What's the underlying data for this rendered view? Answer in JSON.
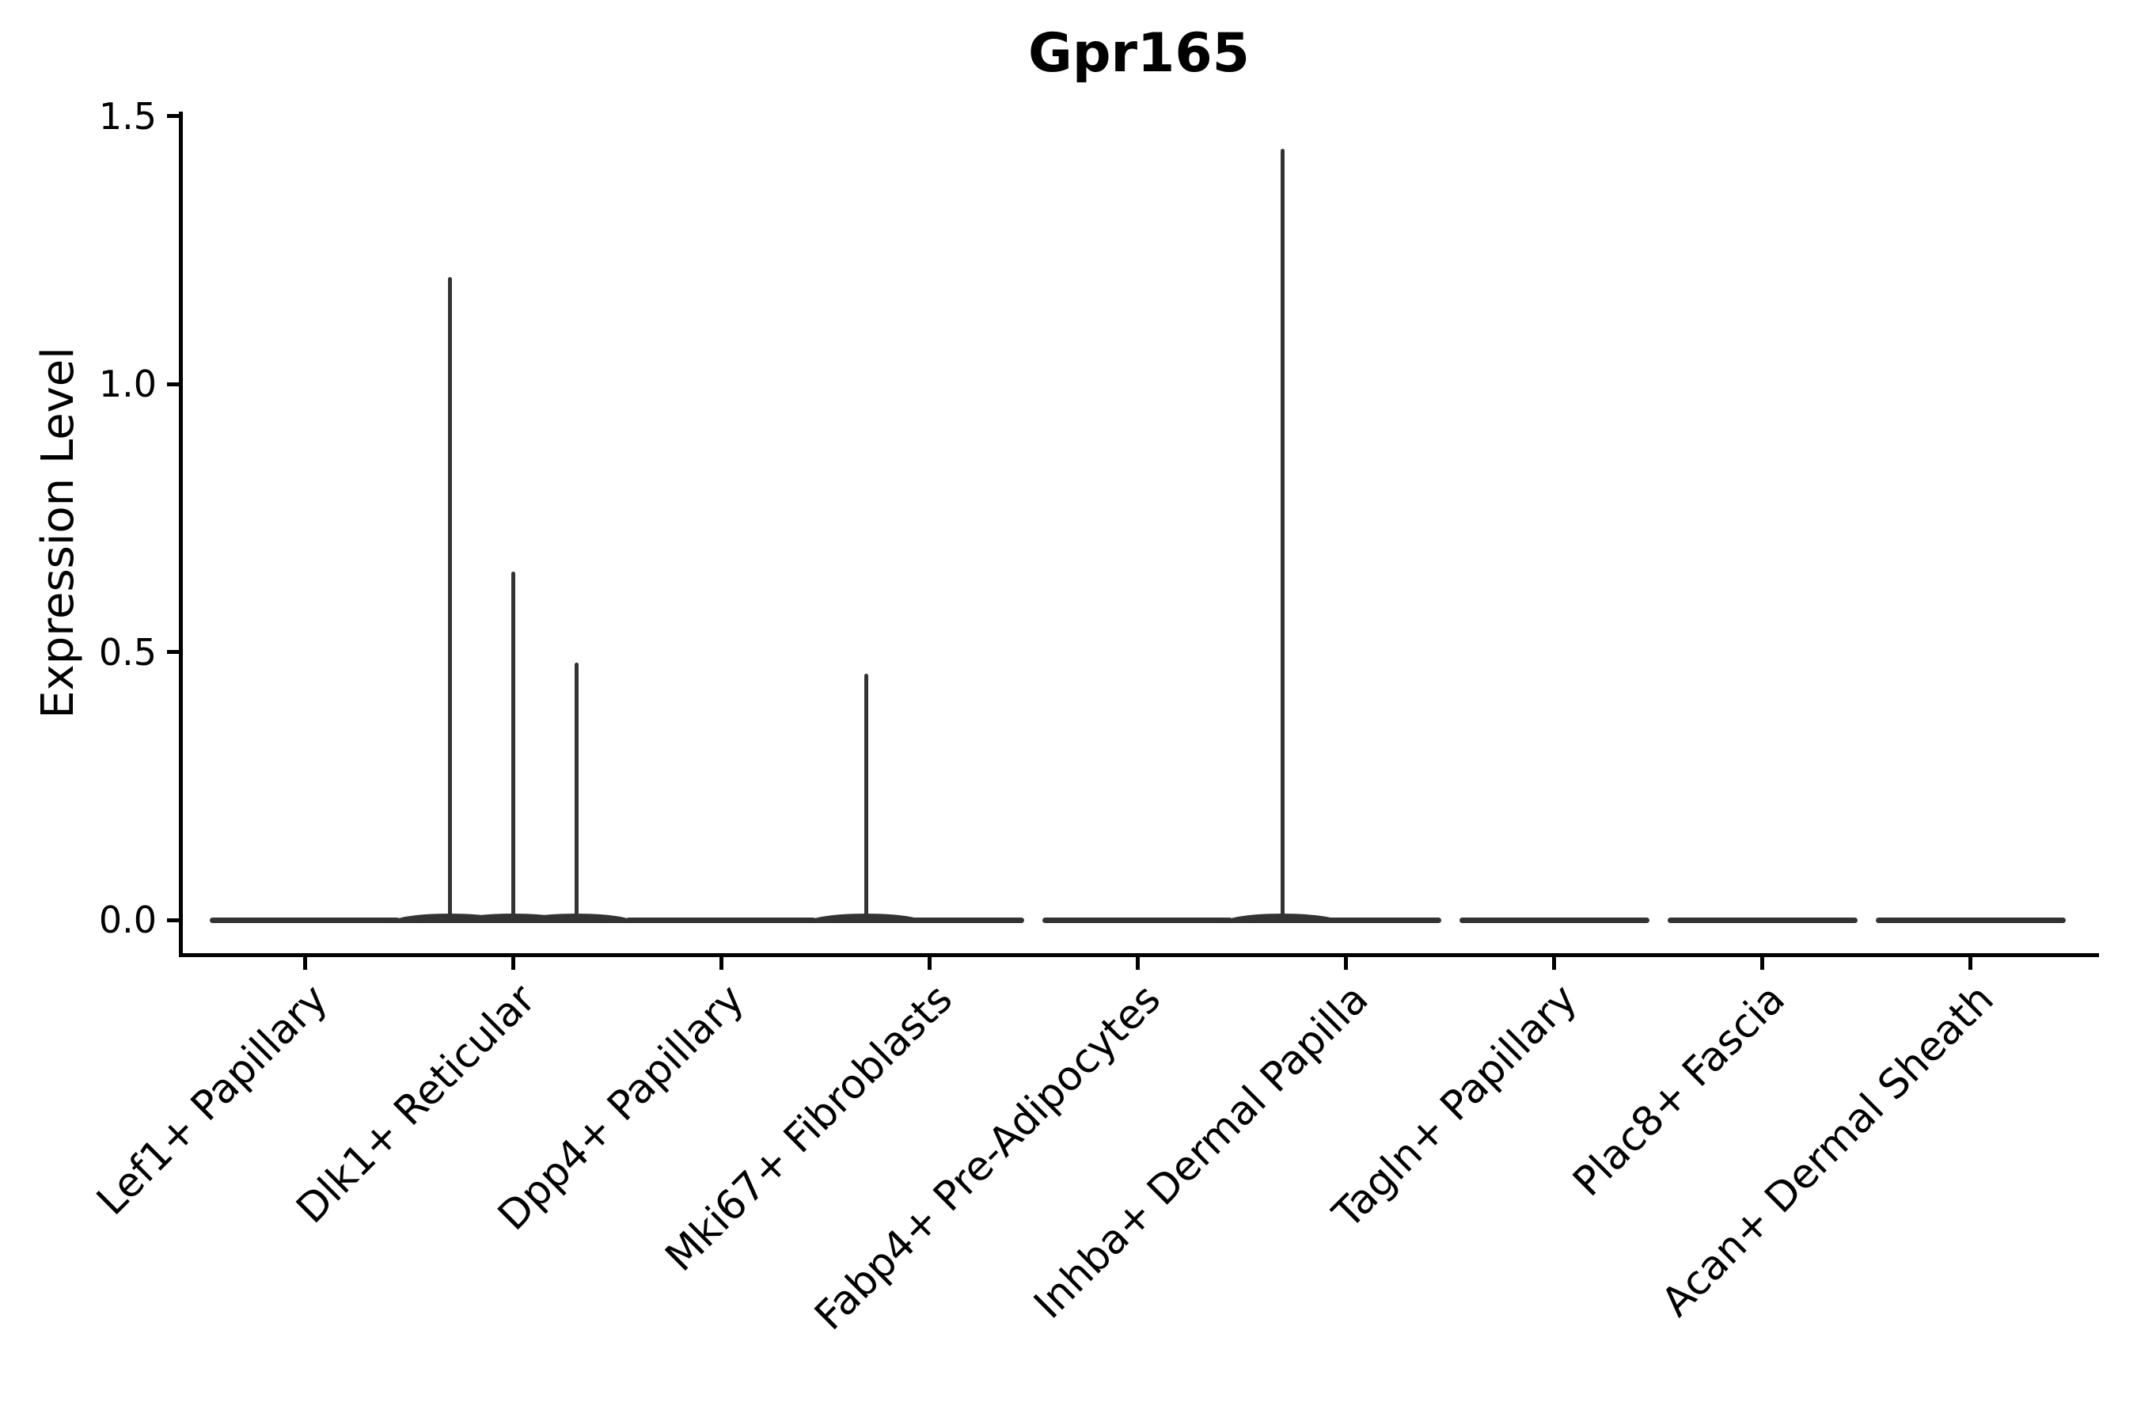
{
  "title": "Gpr165",
  "chart_data": {
    "type": "violin",
    "title": "Gpr165",
    "xlabel": "",
    "ylabel": "Expression Level",
    "ylim": [
      -0.07,
      1.51
    ],
    "yticks": [
      0.0,
      0.5,
      1.0,
      1.5
    ],
    "ytick_labels": [
      "0.0",
      "0.5",
      "1.0",
      "1.5"
    ],
    "grid": false,
    "legend": "none",
    "xtick_label_rotation_deg": 45,
    "categories": [
      "Lef1+ Papillary",
      "Dlk1+ Reticular",
      "Dpp4+ Papillary",
      "Mki67+ Fibroblasts",
      "Fabp4+ Pre-Adipocytes",
      "Inhba+ Dermal Papilla",
      "Tagln+ Papillary",
      "Plac8+ Fascia",
      "Acan+ Dermal Sheath"
    ],
    "violins": [
      {
        "category": "Lef1+ Papillary",
        "baseline_value": 0.0,
        "baseline_halfwidth": 0.45,
        "spikes": []
      },
      {
        "category": "Dlk1+ Reticular",
        "baseline_value": 0.0,
        "baseline_halfwidth": 0.45,
        "spikes": [
          {
            "offset": -0.3,
            "value": 1.2
          },
          {
            "offset": 0.0,
            "value": 0.65
          },
          {
            "offset": 0.3,
            "value": 0.48
          }
        ]
      },
      {
        "category": "Dpp4+ Papillary",
        "baseline_value": 0.0,
        "baseline_halfwidth": 0.45,
        "spikes": []
      },
      {
        "category": "Mki67+ Fibroblasts",
        "baseline_value": 0.0,
        "baseline_halfwidth": 0.45,
        "spikes": [
          {
            "offset": -0.3,
            "value": 0.46
          }
        ]
      },
      {
        "category": "Fabp4+ Pre-Adipocytes",
        "baseline_value": 0.0,
        "baseline_halfwidth": 0.45,
        "spikes": []
      },
      {
        "category": "Inhba+ Dermal Papilla",
        "baseline_value": 0.0,
        "baseline_halfwidth": 0.45,
        "spikes": [
          {
            "offset": -0.3,
            "value": 1.44
          }
        ]
      },
      {
        "category": "Tagln+ Papillary",
        "baseline_value": 0.0,
        "baseline_halfwidth": 0.45,
        "spikes": []
      },
      {
        "category": "Plac8+ Fascia",
        "baseline_value": 0.0,
        "baseline_halfwidth": 0.45,
        "spikes": []
      },
      {
        "category": "Acan+ Dermal Sheath",
        "baseline_value": 0.0,
        "baseline_halfwidth": 0.45,
        "spikes": []
      }
    ],
    "colors": {
      "violin": "#333333",
      "axis": "#000000",
      "text": "#000000",
      "background": "#ffffff"
    }
  }
}
